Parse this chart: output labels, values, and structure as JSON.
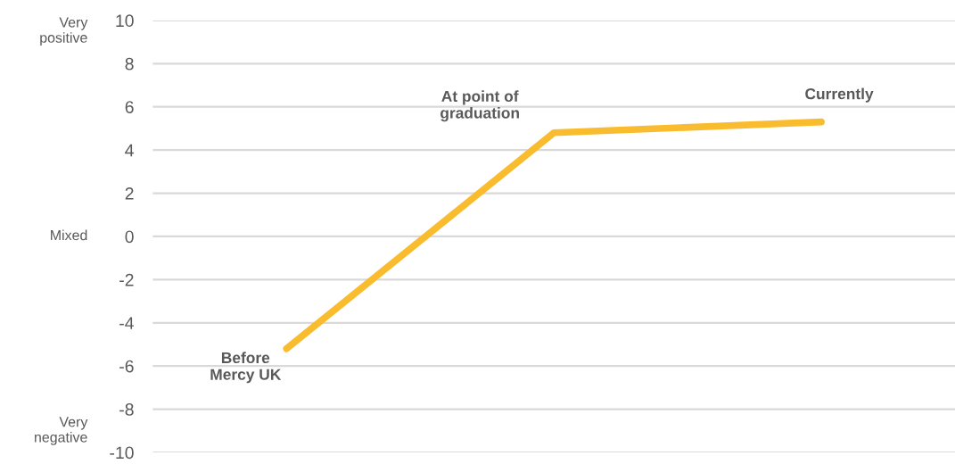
{
  "chart_data": {
    "type": "line",
    "categories": [
      null,
      null,
      null
    ],
    "series": [
      {
        "color": "#f9bc2e",
        "values": [
          -5.2,
          4.8,
          5.3
        ]
      }
    ],
    "ylim": [
      -10,
      10
    ],
    "yticks": [
      -10,
      -8,
      -6,
      -4,
      -2,
      0,
      2,
      4,
      6,
      8,
      10
    ],
    "annotations": [
      "Very\npositive",
      "Mixed",
      "Very\nnegative",
      "Before\nMercy UK",
      "At point of\ngraduation",
      "Currently"
    ],
    "grid": "y",
    "line_style": "solid"
  }
}
